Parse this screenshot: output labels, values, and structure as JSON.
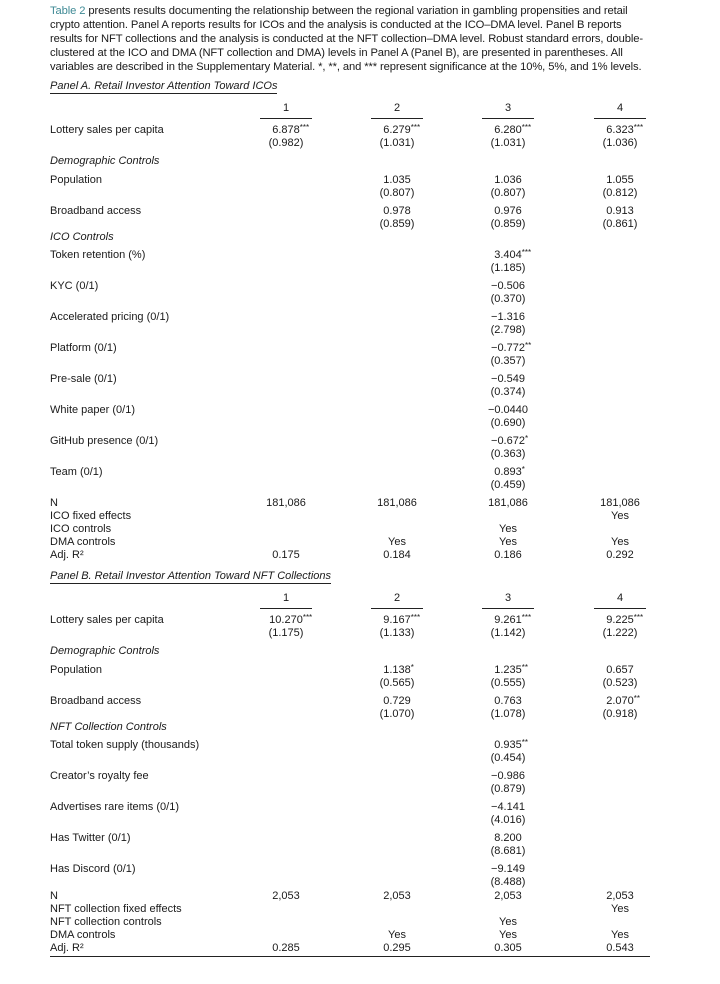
{
  "intro": {
    "ref": "Table 2",
    "text": " presents results documenting the relationship between the regional variation in gambling propensities and retail crypto attention. Panel A reports results for ICOs and the analysis is conducted at the ICO–DMA level. Panel B reports results for NFT collections and the analysis is conducted at the NFT collection–DMA level. Robust standard errors, double-clustered at the ICO and DMA (NFT collection and DMA) levels in Panel A (Panel B), are presented in parentheses. All variables are described in the Supplementary Material. *, **, and *** represent significance at the 10%, 5%, and 1% levels."
  },
  "panels": [
    {
      "title": "Panel A. Retail Investor Attention Toward ICOs",
      "columns": [
        "1",
        "2",
        "3",
        "4"
      ],
      "rows": [
        {
          "type": "var",
          "label": "Lottery sales per capita",
          "cells": [
            {
              "coef": "6.878",
              "stars": "***",
              "se": "(0.982)"
            },
            {
              "coef": "6.279",
              "stars": "***",
              "se": "(1.031)"
            },
            {
              "coef": "6.280",
              "stars": "***",
              "se": "(1.031)"
            },
            {
              "coef": "6.323",
              "stars": "***",
              "se": "(1.036)"
            }
          ]
        },
        {
          "type": "sec",
          "label": "Demographic Controls"
        },
        {
          "type": "var",
          "label": "Population",
          "cells": [
            null,
            {
              "coef": "1.035",
              "stars": "",
              "se": "(0.807)"
            },
            {
              "coef": "1.036",
              "stars": "",
              "se": "(0.807)"
            },
            {
              "coef": "1.055",
              "stars": "",
              "se": "(0.812)"
            }
          ]
        },
        {
          "type": "var",
          "label": "Broadband access",
          "cells": [
            null,
            {
              "coef": "0.978",
              "stars": "",
              "se": "(0.859)"
            },
            {
              "coef": "0.976",
              "stars": "",
              "se": "(0.859)"
            },
            {
              "coef": "0.913",
              "stars": "",
              "se": "(0.861)"
            }
          ]
        },
        {
          "type": "sec",
          "tight": true,
          "label": "ICO Controls"
        },
        {
          "type": "var",
          "label": "Token retention (%)",
          "cells": [
            null,
            null,
            {
              "coef": "3.404",
              "stars": "***",
              "se": "(1.185)"
            },
            null
          ]
        },
        {
          "type": "var",
          "label": "KYC (0/1)",
          "cells": [
            null,
            null,
            {
              "coef": "−0.506",
              "stars": "",
              "se": "(0.370)"
            },
            null
          ]
        },
        {
          "type": "var",
          "label": "Accelerated pricing (0/1)",
          "cells": [
            null,
            null,
            {
              "coef": "−1.316",
              "stars": "",
              "se": "(2.798)"
            },
            null
          ]
        },
        {
          "type": "var",
          "label": "Platform (0/1)",
          "cells": [
            null,
            null,
            {
              "coef": "−0.772",
              "stars": "**",
              "se": "(0.357)"
            },
            null
          ]
        },
        {
          "type": "var",
          "label": "Pre-sale (0/1)",
          "cells": [
            null,
            null,
            {
              "coef": "−0.549",
              "stars": "",
              "se": "(0.374)"
            },
            null
          ]
        },
        {
          "type": "var",
          "label": "White paper (0/1)",
          "cells": [
            null,
            null,
            {
              "coef": "−0.0440",
              "stars": "",
              "se": "(0.690)"
            },
            null
          ]
        },
        {
          "type": "var",
          "label": "GitHub presence (0/1)",
          "cells": [
            null,
            null,
            {
              "coef": "−0.672",
              "stars": "*",
              "se": "(0.363)"
            },
            null
          ]
        },
        {
          "type": "var",
          "label": "Team (0/1)",
          "cells": [
            null,
            null,
            {
              "coef": "0.893",
              "stars": "*",
              "se": "(0.459)"
            },
            null
          ]
        },
        {
          "type": "sum",
          "label": "N",
          "cells": [
            "181,086",
            "181,086",
            "181,086",
            "181,086"
          ]
        },
        {
          "type": "sum",
          "label": "ICO fixed effects",
          "cells": [
            "",
            "",
            "",
            "Yes"
          ]
        },
        {
          "type": "sum",
          "label": "ICO controls",
          "cells": [
            "",
            "",
            "Yes",
            ""
          ]
        },
        {
          "type": "sum",
          "label": "DMA controls",
          "cells": [
            "",
            "Yes",
            "Yes",
            "Yes"
          ]
        },
        {
          "type": "sum",
          "label": "Adj. R²",
          "cells": [
            "0.175",
            "0.184",
            "0.186",
            "0.292"
          ]
        }
      ]
    },
    {
      "title": "Panel B. Retail Investor Attention Toward NFT Collections",
      "columns": [
        "1",
        "2",
        "3",
        "4"
      ],
      "rows": [
        {
          "type": "var",
          "label": "Lottery sales per capita",
          "cells": [
            {
              "coef": "10.270",
              "stars": "***",
              "se": "(1.175)"
            },
            {
              "coef": "9.167",
              "stars": "***",
              "se": "(1.133)"
            },
            {
              "coef": "9.261",
              "stars": "***",
              "se": "(1.142)"
            },
            {
              "coef": "9.225",
              "stars": "***",
              "se": "(1.222)"
            }
          ]
        },
        {
          "type": "sec",
          "label": "Demographic Controls"
        },
        {
          "type": "var",
          "label": "Population",
          "cells": [
            null,
            {
              "coef": "1.138",
              "stars": "*",
              "se": "(0.565)"
            },
            {
              "coef": "1.235",
              "stars": "**",
              "se": "(0.555)"
            },
            {
              "coef": "0.657",
              "stars": "",
              "se": "(0.523)"
            }
          ]
        },
        {
          "type": "var",
          "label": "Broadband access",
          "cells": [
            null,
            {
              "coef": "0.729",
              "stars": "",
              "se": "(1.070)"
            },
            {
              "coef": "0.763",
              "stars": "",
              "se": "(1.078)"
            },
            {
              "coef": "2.070",
              "stars": "**",
              "se": "(0.918)"
            }
          ]
        },
        {
          "type": "sec",
          "tight": true,
          "label": "NFT Collection Controls"
        },
        {
          "type": "var",
          "label": "Total token supply (thousands)",
          "cells": [
            null,
            null,
            {
              "coef": "0.935",
              "stars": "**",
              "se": "(0.454)"
            },
            null
          ]
        },
        {
          "type": "var",
          "label": "Creator’s royalty fee",
          "cells": [
            null,
            null,
            {
              "coef": "−0.986",
              "stars": "",
              "se": "(0.879)"
            },
            null
          ]
        },
        {
          "type": "var",
          "label": "Advertises rare items (0/1)",
          "cells": [
            null,
            null,
            {
              "coef": "−4.141",
              "stars": "",
              "se": "(4.016)"
            },
            null
          ]
        },
        {
          "type": "var",
          "label": "Has Twitter (0/1)",
          "cells": [
            null,
            null,
            {
              "coef": "8.200",
              "stars": "",
              "se": "(8.681)"
            },
            null
          ]
        },
        {
          "type": "var",
          "tight": true,
          "label": "Has Discord (0/1)",
          "cells": [
            null,
            null,
            {
              "coef": "−9.149",
              "stars": "",
              "se": "(8.488)"
            },
            null
          ]
        },
        {
          "type": "sum",
          "label": "N",
          "cells": [
            "2,053",
            "2,053",
            "2,053",
            "2,053"
          ]
        },
        {
          "type": "sum",
          "label": "NFT collection fixed effects",
          "cells": [
            "",
            "",
            "",
            "Yes"
          ]
        },
        {
          "type": "sum",
          "label": "NFT collection controls",
          "cells": [
            "",
            "",
            "Yes",
            ""
          ]
        },
        {
          "type": "sum",
          "label": "DMA controls",
          "cells": [
            "",
            "Yes",
            "Yes",
            "Yes"
          ]
        },
        {
          "type": "sum",
          "label": "Adj. R²",
          "cells": [
            "0.285",
            "0.295",
            "0.305",
            "0.543"
          ]
        }
      ]
    }
  ]
}
